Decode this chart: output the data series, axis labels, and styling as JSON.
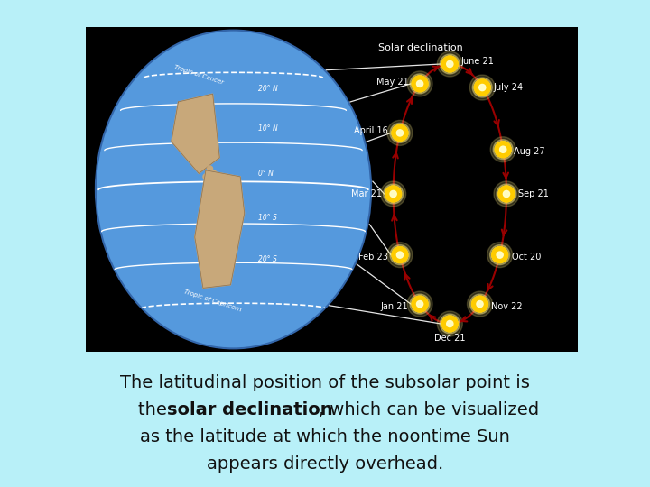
{
  "bg_color": "#b8f0f8",
  "image_bg_color": "#000000",
  "globe_color": "#5599dd",
  "land_color": "#c8a87a",
  "land_edge_color": "#8a7050",
  "title_text": "Solar declination",
  "caption_line1": "The latitudinal position of the subsolar point is",
  "caption_line2_pre": "the ",
  "caption_line2_bold": "solar declination",
  "caption_line2_post": ", which can be visualized",
  "caption_line3": "as the latitude at which the noontime Sun",
  "caption_line4": "appears directly overhead.",
  "font_size_caption": 14,
  "sun_color": "#ffcc00",
  "sun_glow_color": "#ffee88",
  "sun_inner_color": "#ffffcc",
  "arrow_color": "#990000",
  "white": "#ffffff",
  "angles_deg": {
    "June 21": 90,
    "July 24": 55,
    "Aug 27": 20,
    "Sep 21": 0,
    "Oct 20": -28,
    "Nov 22": -58,
    "Dec 21": -90,
    "Jan 21": -122,
    "Feb 23": -152,
    "Mar 21": 180,
    "April 16": 152,
    "May 21": 122
  },
  "label_ha": {
    "June 21": "left",
    "July 24": "left",
    "Aug 27": "left",
    "Sep 21": "left",
    "Oct 20": "left",
    "Nov 22": "left",
    "Dec 21": "center",
    "Jan 21": "right",
    "Feb 23": "right",
    "Mar 21": "right",
    "April 16": "right",
    "May 21": "right"
  },
  "tropic_cancer": "Tropic of Cancer",
  "tropic_capricorn": "Tropic of Capricorn",
  "lat_labels": [
    "20° N",
    "10° N",
    "0° N",
    "10° S",
    "20° S"
  ],
  "lat_fracs": [
    0.63,
    0.38,
    0.1,
    -0.18,
    -0.44
  ]
}
